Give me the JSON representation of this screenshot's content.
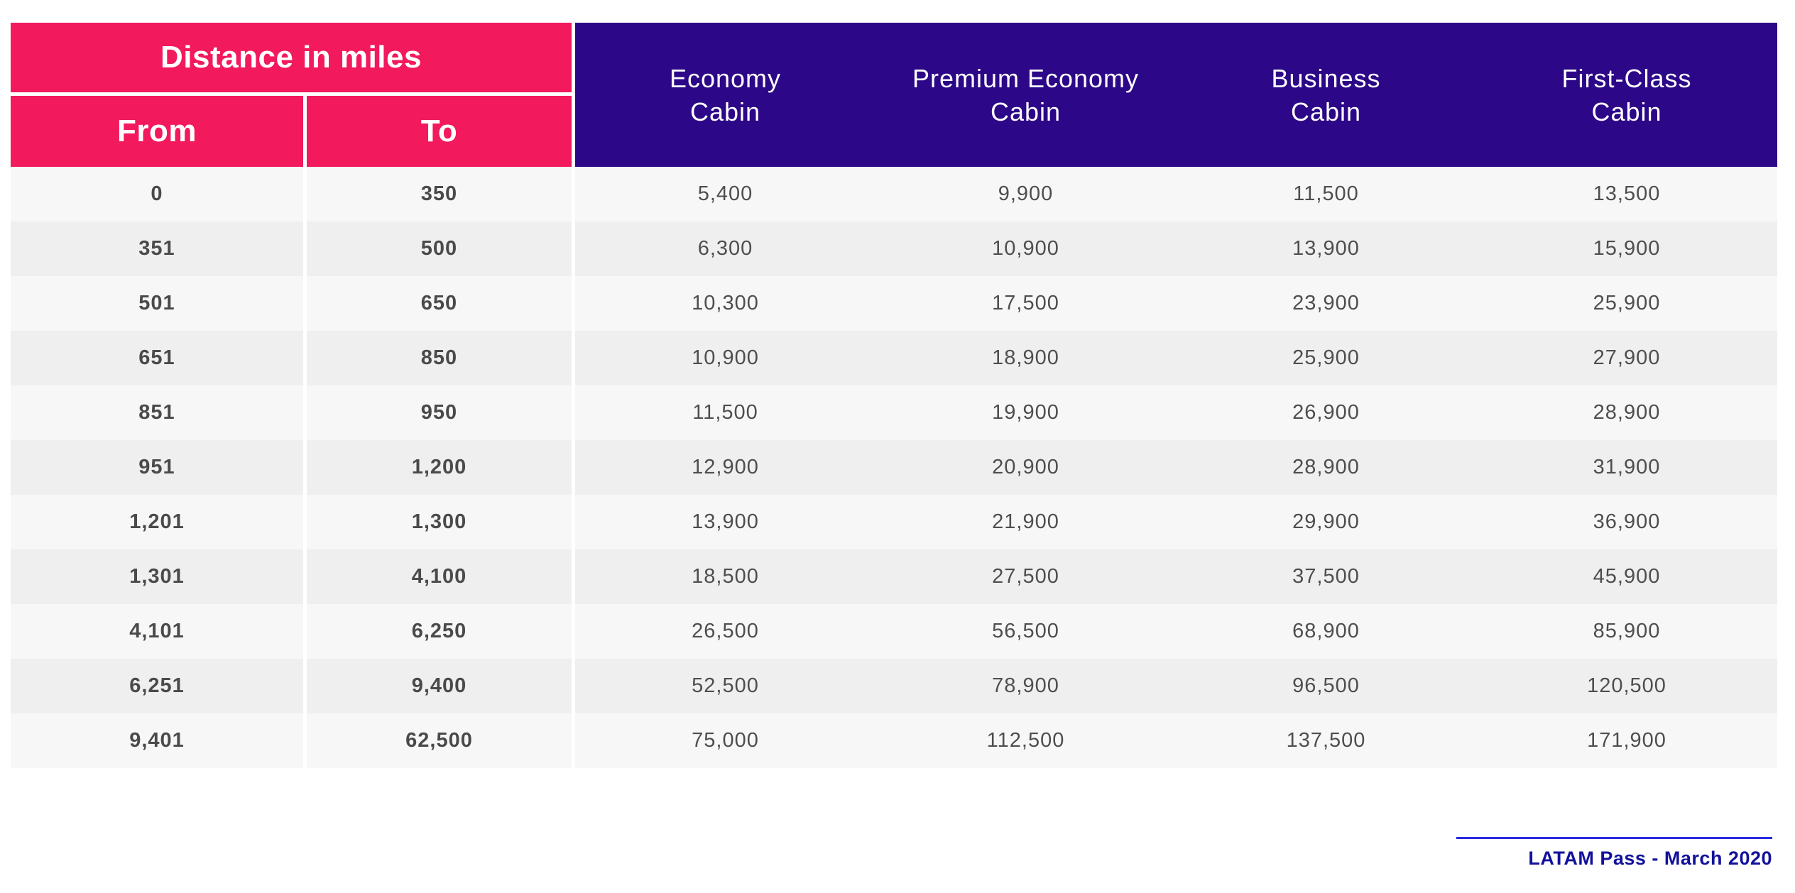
{
  "table": {
    "distance_header": "Distance in miles",
    "from_label": "From",
    "to_label": "To",
    "cabins": [
      {
        "line1": "Economy",
        "line2": "Cabin"
      },
      {
        "line1": "Premium Economy",
        "line2": "Cabin"
      },
      {
        "line1": "Business",
        "line2": "Cabin"
      },
      {
        "line1": "First-Class",
        "line2": "Cabin"
      }
    ],
    "rows": [
      {
        "from": "0",
        "to": "350",
        "economy": "5,400",
        "premium_economy": "9,900",
        "business": "11,500",
        "first_class": "13,500"
      },
      {
        "from": "351",
        "to": "500",
        "economy": "6,300",
        "premium_economy": "10,900",
        "business": "13,900",
        "first_class": "15,900"
      },
      {
        "from": "501",
        "to": "650",
        "economy": "10,300",
        "premium_economy": "17,500",
        "business": "23,900",
        "first_class": "25,900"
      },
      {
        "from": "651",
        "to": "850",
        "economy": "10,900",
        "premium_economy": "18,900",
        "business": "25,900",
        "first_class": "27,900"
      },
      {
        "from": "851",
        "to": "950",
        "economy": "11,500",
        "premium_economy": "19,900",
        "business": "26,900",
        "first_class": "28,900"
      },
      {
        "from": "951",
        "to": "1,200",
        "economy": "12,900",
        "premium_economy": "20,900",
        "business": "28,900",
        "first_class": "31,900"
      },
      {
        "from": "1,201",
        "to": "1,300",
        "economy": "13,900",
        "premium_economy": "21,900",
        "business": "29,900",
        "first_class": "36,900"
      },
      {
        "from": "1,301",
        "to": "4,100",
        "economy": "18,500",
        "premium_economy": "27,500",
        "business": "37,500",
        "first_class": "45,900"
      },
      {
        "from": "4,101",
        "to": "6,250",
        "economy": "26,500",
        "premium_economy": "56,500",
        "business": "68,900",
        "first_class": "85,900"
      },
      {
        "from": "6,251",
        "to": "9,400",
        "economy": "52,500",
        "premium_economy": "78,900",
        "business": "96,500",
        "first_class": "120,500"
      },
      {
        "from": "9,401",
        "to": "62,500",
        "economy": "75,000",
        "premium_economy": "112,500",
        "business": "137,500",
        "first_class": "171,900"
      }
    ]
  },
  "footer": {
    "caption": "LATAM Pass - March 2020"
  },
  "colors": {
    "pink": "#F2195C",
    "purple": "#2C0787",
    "row_odd": "#F7F7F7",
    "row_even": "#EFEFEF",
    "range_text": "#4A4A4A",
    "value_text": "#4E4E4E",
    "footer_line": "#2B2BE2",
    "footer_text": "#12119B"
  },
  "chart_data": {
    "type": "table",
    "columns": [
      "From",
      "To",
      "Economy Cabin",
      "Premium Economy Cabin",
      "Business Cabin",
      "First-Class Cabin"
    ],
    "rows": [
      [
        "0",
        "350",
        "5,400",
        "9,900",
        "11,500",
        "13,500"
      ],
      [
        "351",
        "500",
        "6,300",
        "10,900",
        "13,900",
        "15,900"
      ],
      [
        "501",
        "650",
        "10,300",
        "17,500",
        "23,900",
        "25,900"
      ],
      [
        "651",
        "850",
        "10,900",
        "18,900",
        "25,900",
        "27,900"
      ],
      [
        "851",
        "950",
        "11,500",
        "19,900",
        "26,900",
        "28,900"
      ],
      [
        "951",
        "1,200",
        "12,900",
        "20,900",
        "28,900",
        "31,900"
      ],
      [
        "1,201",
        "1,300",
        "13,900",
        "21,900",
        "29,900",
        "36,900"
      ],
      [
        "1,301",
        "4,100",
        "18,500",
        "27,500",
        "37,500",
        "45,900"
      ],
      [
        "4,101",
        "6,250",
        "26,500",
        "56,500",
        "68,900",
        "85,900"
      ],
      [
        "6,251",
        "9,400",
        "52,500",
        "78,900",
        "96,500",
        "120,500"
      ],
      [
        "9,401",
        "62,500",
        "75,000",
        "112,500",
        "137,500",
        "171,900"
      ]
    ]
  }
}
